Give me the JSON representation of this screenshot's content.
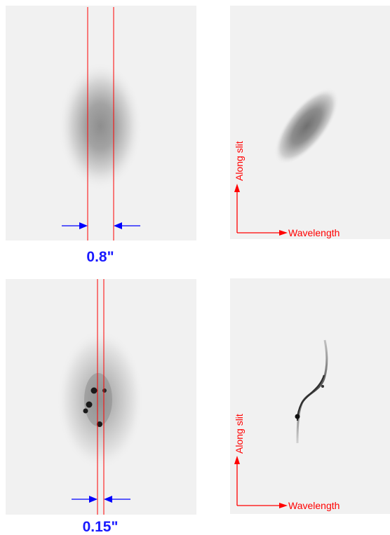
{
  "panels": {
    "seeing_limited": {
      "slit_width_label": "0.8\"",
      "axis_x_label": "Wavelength",
      "axis_y_label": "Along slit"
    },
    "adaptive_optics": {
      "slit_width_label": "0.15\"",
      "axis_x_label": "Wavelength",
      "axis_y_label": "Along slit"
    }
  },
  "colors": {
    "slit_lines": "#ff0000",
    "width_arrows": "#0000ff",
    "width_text": "#1a1aff",
    "axis_arrows": "#ff0000",
    "panel_background": "#f1f1f1"
  }
}
